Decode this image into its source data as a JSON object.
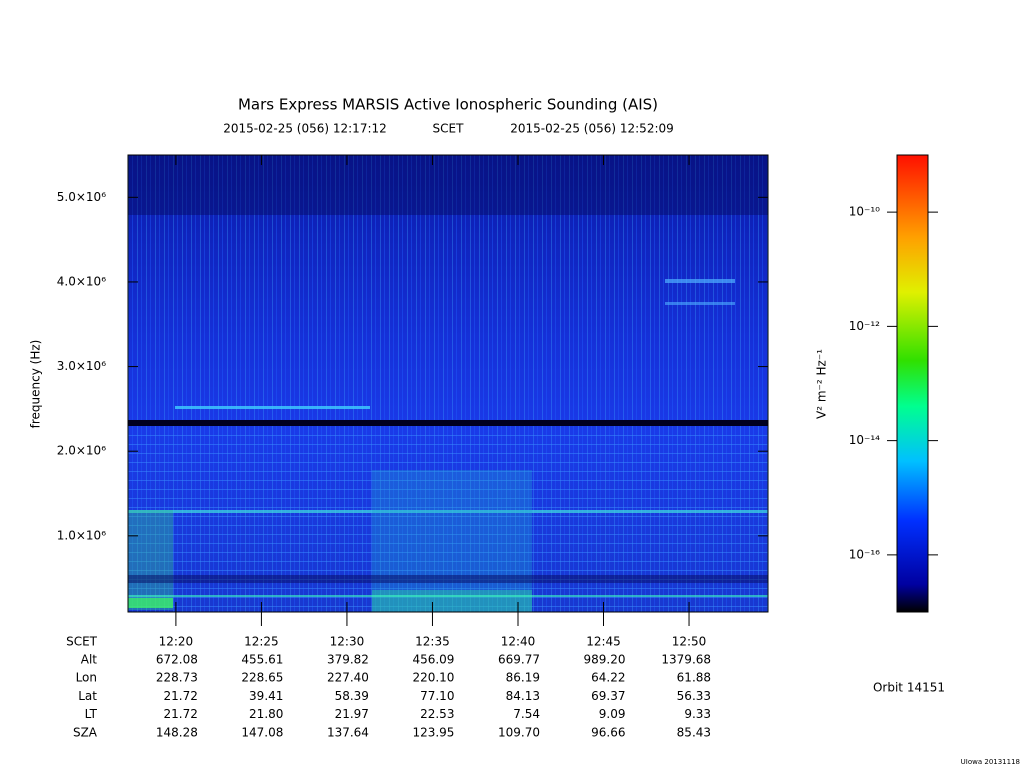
{
  "chart_data": {
    "type": "spectrogram",
    "title": "Mars Express MARSIS Active Ionospheric Sounding (AIS)",
    "start_time": "2015-02-25 (056) 12:17:12",
    "time_system": "SCET",
    "end_time": "2015-02-25 (056) 12:52:09",
    "ylabel": "frequency (Hz)",
    "xlim": [
      44232,
      46477
    ],
    "xticks": [
      {
        "value": 44400,
        "label": "12:20"
      },
      {
        "value": 44700,
        "label": "12:25"
      },
      {
        "value": 45000,
        "label": "12:30"
      },
      {
        "value": 45300,
        "label": "12:35"
      },
      {
        "value": 45600,
        "label": "12:40"
      },
      {
        "value": 45900,
        "label": "12:45"
      },
      {
        "value": 46200,
        "label": "12:50"
      }
    ],
    "ylim": [
      100000,
      5500000
    ],
    "yticks": [
      {
        "value": 1000000,
        "label": "1.0×10⁶"
      },
      {
        "value": 2000000,
        "label": "2.0×10⁶"
      },
      {
        "value": 3000000,
        "label": "3.0×10⁶"
      },
      {
        "value": 4000000,
        "label": "4.0×10⁶"
      },
      {
        "value": 5000000,
        "label": "5.0×10⁶"
      }
    ],
    "colorbar": {
      "scale": "log",
      "lim": [
        1e-17,
        1e-09
      ],
      "ticks": [
        {
          "value": 1e-10,
          "label": "10⁻¹⁰"
        },
        {
          "value": 1e-12,
          "label": "10⁻¹²"
        },
        {
          "value": 1e-14,
          "label": "10⁻¹⁴"
        },
        {
          "value": 1e-16,
          "label": "10⁻¹⁶"
        }
      ],
      "label": "V² m⁻² Hz⁻¹"
    },
    "ephemeris": {
      "time_label": "SCET",
      "rows": [
        {
          "name": "Alt",
          "values": [
            "672.08",
            "455.61",
            "379.82",
            "456.09",
            "669.77",
            "989.20",
            "1379.68"
          ]
        },
        {
          "name": "Lon",
          "values": [
            "228.73",
            "228.65",
            "227.40",
            "220.10",
            "86.19",
            "64.22",
            "61.88"
          ]
        },
        {
          "name": "Lat",
          "values": [
            "21.72",
            "39.41",
            "58.39",
            "77.10",
            "84.13",
            "69.37",
            "56.33"
          ]
        },
        {
          "name": "LT",
          "values": [
            "21.72",
            "21.80",
            "21.97",
            "22.53",
            "7.54",
            "9.09",
            "9.33"
          ]
        },
        {
          "name": "SZA",
          "values": [
            "148.28",
            "147.08",
            "137.64",
            "123.95",
            "109.70",
            "96.66",
            "85.43"
          ]
        }
      ]
    },
    "orbit": "Orbit 14151",
    "credit": "UIowa 20131118"
  }
}
